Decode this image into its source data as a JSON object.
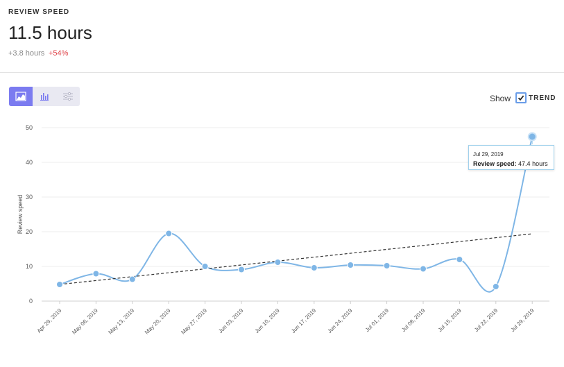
{
  "metric": {
    "label": "REVIEW SPEED",
    "value": "11.5 hours",
    "delta": "+3.8 hours",
    "delta_pct": "+54%"
  },
  "toolbar": {
    "views": [
      {
        "icon": "area-chart-icon",
        "active": true
      },
      {
        "icon": "bar-chart-icon",
        "active": false
      },
      {
        "icon": "sliders-icon",
        "active": false
      }
    ]
  },
  "show": {
    "label": "Show",
    "trend_label": "TREND",
    "trend_checked": true
  },
  "tooltip": {
    "date": "Jul 29, 2019",
    "series_label": "Review speed:",
    "value_text": "47.4 hours"
  },
  "colors": {
    "line": "#7fb6e6",
    "point": "#7fb6e6",
    "trend": "#333333",
    "accent": "#7b7bf0",
    "negative": "#e0474c"
  },
  "chart_data": {
    "type": "line",
    "ylabel": "Review speed",
    "xlabel": "",
    "ylim": [
      0,
      50
    ],
    "yticks": [
      0,
      10,
      20,
      30,
      40,
      50
    ],
    "grid": true,
    "categories": [
      "Apr 29, 2019",
      "May 06, 2019",
      "May 13, 2019",
      "May 20, 2019",
      "May 27, 2019",
      "Jun 03, 2019",
      "Jun 10, 2019",
      "Jun 17, 2019",
      "Jun 24, 2019",
      "Jul 01, 2019",
      "Jul 08, 2019",
      "Jul 15, 2019",
      "Jul 22, 2019",
      "Jul 29, 2019"
    ],
    "series": [
      {
        "values": [
          4.8,
          7.9,
          6.3,
          19.5,
          10.0,
          9.1,
          11.2,
          9.6,
          10.4,
          10.2,
          9.3,
          12.0,
          4.2,
          47.4
        ]
      }
    ],
    "trend": {
      "start": 4.8,
      "end": 19.4
    }
  }
}
